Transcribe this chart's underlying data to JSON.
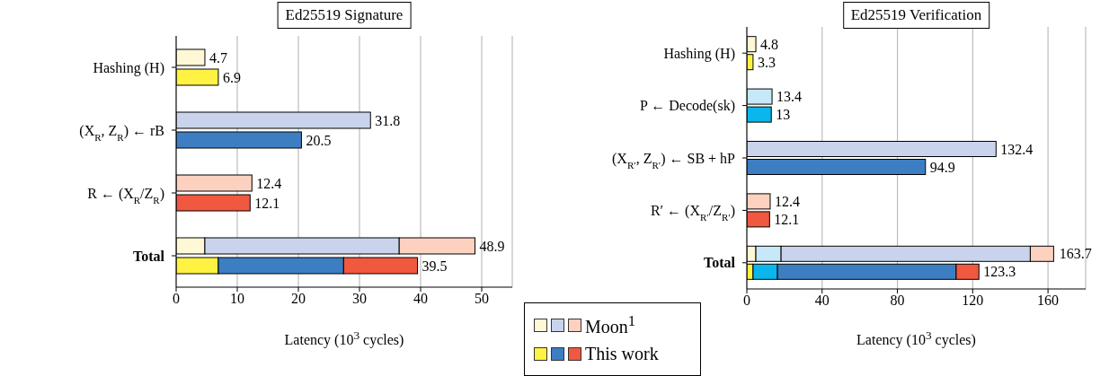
{
  "chart_data": [
    {
      "type": "bar",
      "orientation": "horizontal",
      "title": "Ed25519 Signature",
      "xlabel": "Latency (10$^{3}$ cycles)",
      "categories": [
        "Hashing (H)",
        "(X$_{R}$, Z$_{R}$) ← rB",
        "R ← (X$_{R}$/Z$_{R}$)",
        "Total"
      ],
      "xlim": [
        0,
        55
      ],
      "xticks": [
        0,
        10,
        20,
        30,
        40,
        50
      ],
      "grid": "x",
      "legend": "bottom",
      "annotations": [
        {
          "text": "48.9",
          "x": 48.9,
          "y": "Total"
        },
        {
          "text": "39.5",
          "x": 39.5,
          "y": "Total"
        }
      ],
      "series": [
        {
          "color": "#fff8d6",
          "values": [
            4.7,
            null,
            null,
            4.7
          ],
          "base": [
            0,
            null,
            null,
            0
          ],
          "value_labels": [
            "4.7",
            null,
            null,
            null
          ]
        },
        {
          "color": "#c9d4ec",
          "values": [
            null,
            31.8,
            null,
            31.8
          ],
          "base": [
            null,
            0,
            null,
            4.7
          ],
          "value_labels": [
            null,
            "31.8",
            null,
            null
          ]
        },
        {
          "name": "Moon$^{1}$",
          "color": "#fcd1c0",
          "values": [
            null,
            null,
            12.4,
            12.4
          ],
          "base": [
            null,
            null,
            0,
            36.5
          ],
          "value_labels": [
            null,
            null,
            "12.4",
            null
          ]
        },
        {
          "color": "#fff242",
          "values": [
            6.9,
            null,
            null,
            6.9
          ],
          "base": [
            0,
            null,
            null,
            0
          ],
          "value_labels": [
            "6.9",
            null,
            null,
            null
          ]
        },
        {
          "color": "#3d7ec3",
          "values": [
            null,
            20.5,
            null,
            20.5
          ],
          "base": [
            null,
            0,
            null,
            6.9
          ],
          "value_labels": [
            null,
            "20.5",
            null,
            null
          ]
        },
        {
          "name": "This work",
          "color": "#f05840",
          "values": [
            null,
            null,
            12.1,
            12.1
          ],
          "base": [
            null,
            null,
            0,
            27.4
          ],
          "value_labels": [
            null,
            null,
            "12.1",
            null
          ]
        }
      ]
    },
    {
      "type": "bar",
      "orientation": "horizontal",
      "title": "Ed25519 Verification",
      "xlabel": "Latency (10$^{3}$ cycles)",
      "categories": [
        "Hashing (H)",
        "P ← Decode(sk)",
        "(X$_{R′}$, Z$_{R′}$) ← SB + hP",
        "R′ ← (X$_{R′}$/Z$_{R′}$)",
        "Total"
      ],
      "xlim": [
        0,
        180
      ],
      "xticks": [
        0,
        40,
        80,
        120,
        160
      ],
      "grid": "x",
      "annotations": [
        {
          "text": "163.7",
          "x": 163.7,
          "y": "Total"
        },
        {
          "text": "123.3",
          "x": 123.3,
          "y": "Total"
        }
      ],
      "series": [
        {
          "color": "#fff8d6",
          "values": [
            4.8,
            null,
            null,
            null,
            4.8
          ],
          "base": [
            0,
            null,
            null,
            null,
            0
          ],
          "value_labels": [
            "4.8",
            null,
            null,
            null,
            null
          ]
        },
        {
          "color": "#c6e8f8",
          "values": [
            null,
            13.4,
            null,
            null,
            13.4
          ],
          "base": [
            null,
            0,
            null,
            null,
            4.8
          ],
          "value_labels": [
            null,
            "13.4",
            null,
            null,
            null
          ]
        },
        {
          "color": "#c9d4ec",
          "values": [
            null,
            null,
            132.4,
            null,
            132.4
          ],
          "base": [
            null,
            null,
            0,
            null,
            18.2
          ],
          "value_labels": [
            null,
            null,
            "132.4",
            null,
            null
          ]
        },
        {
          "color": "#fcd1c0",
          "values": [
            null,
            null,
            null,
            12.4,
            12.4
          ],
          "base": [
            null,
            null,
            null,
            0,
            150.6
          ],
          "value_labels": [
            null,
            null,
            null,
            "12.4",
            null
          ]
        },
        {
          "color": "#fff242",
          "values": [
            3.3,
            null,
            null,
            null,
            3.3
          ],
          "base": [
            0,
            null,
            null,
            null,
            0
          ],
          "value_labels": [
            "3.3",
            null,
            null,
            null,
            null
          ]
        },
        {
          "color": "#0bb6ec",
          "values": [
            null,
            13,
            null,
            null,
            13
          ],
          "base": [
            null,
            0,
            null,
            null,
            3.3
          ],
          "value_labels": [
            null,
            "13",
            null,
            null,
            null
          ]
        },
        {
          "color": "#3d7ec3",
          "values": [
            null,
            null,
            94.9,
            null,
            94.9
          ],
          "base": [
            null,
            null,
            0,
            null,
            16.3
          ],
          "value_labels": [
            null,
            null,
            "94.9",
            null,
            null
          ]
        },
        {
          "color": "#f05840",
          "values": [
            null,
            null,
            null,
            12.1,
            12.1
          ],
          "base": [
            null,
            null,
            null,
            0,
            111.2
          ],
          "value_labels": [
            null,
            null,
            null,
            "12.1",
            null
          ]
        }
      ]
    }
  ]
}
